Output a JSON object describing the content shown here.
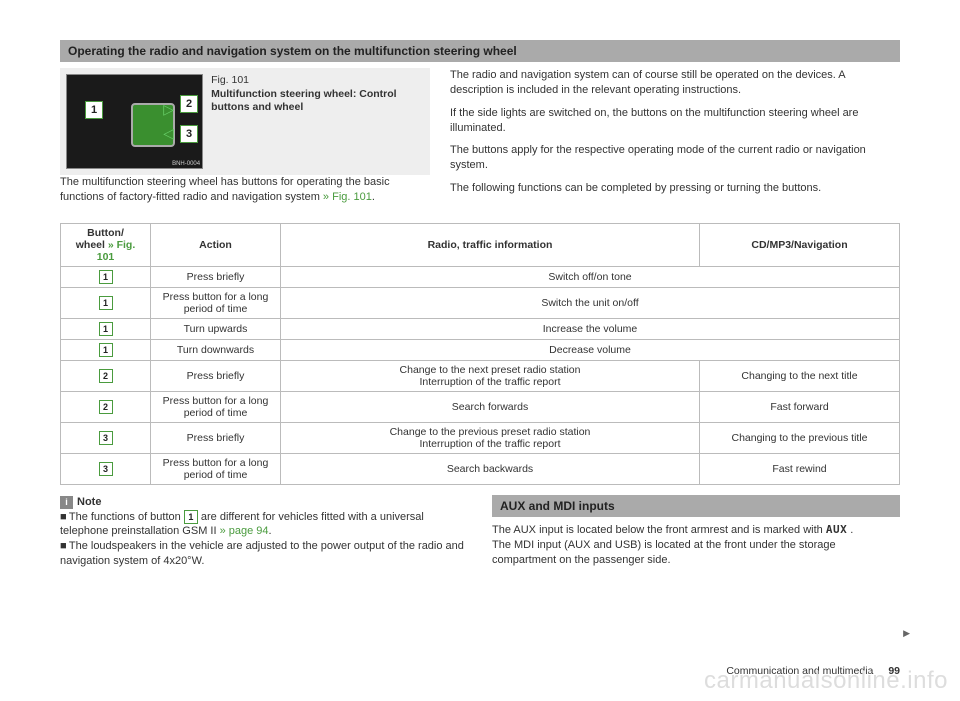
{
  "section_title": "Operating the radio and navigation system on the multifunction steering wheel",
  "figure": {
    "number": "Fig. 101",
    "title": "Multifunction steering wheel: Control buttons and wheel",
    "photo_id": "BNH-0004",
    "callouts": [
      "1",
      "2",
      "3"
    ]
  },
  "under_fig_text_a": "The multifunction steering wheel has buttons for operating the basic functions of factory-fitted radio and navigation system ",
  "under_fig_link": "» Fig. 101",
  "right_paras": [
    "The radio and navigation system can of course still be operated on the devices. A description is included in the relevant operating instructions.",
    "If the side lights are switched on, the buttons on the multifunction steering wheel are illuminated.",
    "The buttons apply for the respective operating mode of the current radio or navigation system.",
    "The following functions can be completed by pressing or turning the buttons."
  ],
  "table": {
    "headers": {
      "col1a": "Button/",
      "col1b": "wheel ",
      "col1c": "» Fig. 101",
      "col2": "Action",
      "col3": "Radio, traffic information",
      "col4": "CD/MP3/Navigation"
    },
    "col_widths": [
      "90px",
      "130px",
      "auto",
      "200px"
    ],
    "rows": [
      {
        "btn": "1",
        "action": "Press briefly",
        "radio": "Switch off/on tone",
        "span34": true
      },
      {
        "btn": "1",
        "action": "Press button for a long period of time",
        "radio": "Switch the unit on/off",
        "span34": true
      },
      {
        "btn": "1",
        "action": "Turn upwards",
        "radio": "Increase the volume",
        "span34": true
      },
      {
        "btn": "1",
        "action": "Turn downwards",
        "radio": "Decrease volume",
        "span34": true
      },
      {
        "btn": "2",
        "action": "Press briefly",
        "radio": "Change to the next preset radio station\nInterruption of the traffic report",
        "nav": "Changing to the next title"
      },
      {
        "btn": "2",
        "action": "Press button for a long period of time",
        "radio": "Search forwards",
        "nav": "Fast forward"
      },
      {
        "btn": "3",
        "action": "Press briefly",
        "radio": "Change to the previous preset radio station\nInterruption of the traffic report",
        "nav": "Changing to the previous title"
      },
      {
        "btn": "3",
        "action": "Press button for a long period of time",
        "radio": "Search backwards",
        "nav": "Fast rewind"
      }
    ]
  },
  "note": {
    "badge": "i",
    "label": "Note",
    "line1a": "The functions of button ",
    "line1_btn": "1",
    "line1b": " are different for vehicles fitted with a universal telephone preinstallation GSM II ",
    "line1_link": "» page 94",
    "line2": "The loudspeakers in the vehicle are adjusted to the power output of the radio and navigation system of 4x20°W."
  },
  "aux": {
    "title": "AUX and MDI inputs",
    "p1a": "The AUX input is located below the front armrest and is marked with ",
    "p1_glyph": "AUX",
    "p1b": " .",
    "p2": "The MDI input (AUX and USB) is located at the front under the storage compartment on the passenger side."
  },
  "footer": {
    "section": "Communication and multimedia",
    "page": "99"
  },
  "watermark": "carmanualsonline.info",
  "colors": {
    "accent": "#4a9b3e",
    "header_bg": "#aaaaaa",
    "border": "#bbbbbb"
  }
}
